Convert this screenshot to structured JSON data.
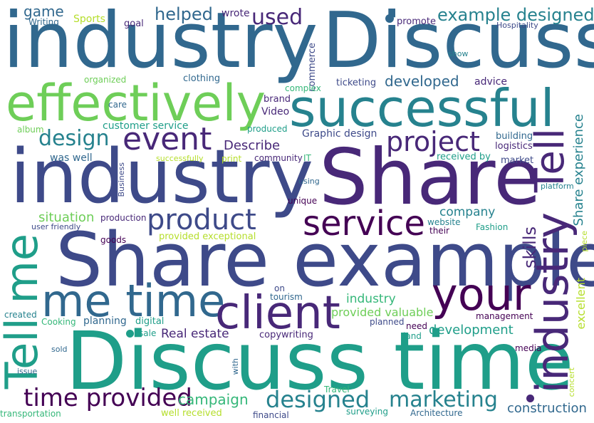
{
  "colors": {
    "purple": "#440154",
    "indigo": "#482878",
    "violet": "#3e4a89",
    "slate": "#31688e",
    "teal": "#26828e",
    "cyan": "#1f9e89",
    "green": "#35b779",
    "lime": "#6ece58",
    "yellow": "#b5de2b"
  },
  "words": [
    {
      "text": "industry",
      "color": "slate",
      "weight": 5
    },
    {
      "text": "Discuss",
      "color": "slate",
      "weight": 5
    },
    {
      "text": "effectively",
      "color": "lime",
      "weight": 4
    },
    {
      "text": "successful",
      "color": "teal",
      "weight": 4
    },
    {
      "text": "industry",
      "color": "violet",
      "weight": 5
    },
    {
      "text": "Share",
      "color": "indigo",
      "weight": 5
    },
    {
      "text": "Share example",
      "color": "violet",
      "weight": 5
    },
    {
      "text": "Discuss time",
      "color": "cyan",
      "weight": 5
    },
    {
      "text": "Tell me",
      "color": "cyan",
      "weight": 4
    },
    {
      "text": "me time",
      "color": "slate",
      "weight": 4
    },
    {
      "text": "client",
      "color": "indigo",
      "weight": 4
    },
    {
      "text": "your",
      "color": "purple",
      "weight": 4
    },
    {
      "text": "industry",
      "color": "indigo",
      "weight": 4
    },
    {
      "text": "Tell",
      "color": "indigo",
      "weight": 4
    },
    {
      "text": "event",
      "color": "indigo",
      "weight": 3
    },
    {
      "text": "design",
      "color": "teal",
      "weight": 3
    },
    {
      "text": "project",
      "color": "indigo",
      "weight": 3
    },
    {
      "text": "product",
      "color": "violet",
      "weight": 3
    },
    {
      "text": "service",
      "color": "purple",
      "weight": 3
    },
    {
      "text": "time provided",
      "color": "purple",
      "weight": 3
    },
    {
      "text": "designed",
      "color": "teal",
      "weight": 3
    },
    {
      "text": "marketing",
      "color": "teal",
      "weight": 3
    },
    {
      "text": "example designed",
      "color": "teal",
      "weight": 2
    },
    {
      "text": "used",
      "color": "indigo",
      "weight": 2
    },
    {
      "text": "helped",
      "color": "slate",
      "weight": 2
    },
    {
      "text": "game",
      "color": "slate",
      "weight": 1
    },
    {
      "text": "Sports",
      "color": "yellow",
      "weight": 1
    },
    {
      "text": "goal",
      "color": "indigo",
      "weight": 1
    },
    {
      "text": "wrote",
      "color": "indigo",
      "weight": 1
    },
    {
      "text": "Writing",
      "color": "slate",
      "weight": 1
    },
    {
      "text": "promote",
      "color": "indigo",
      "weight": 1
    },
    {
      "text": "Hospitality",
      "color": "violet",
      "weight": 1
    },
    {
      "text": "commerce",
      "color": "violet",
      "weight": 1
    },
    {
      "text": "show",
      "color": "teal",
      "weight": 1
    },
    {
      "text": "organized",
      "color": "lime",
      "weight": 1
    },
    {
      "text": "clothing",
      "color": "slate",
      "weight": 1
    },
    {
      "text": "complex",
      "color": "green",
      "weight": 1
    },
    {
      "text": "ticketing",
      "color": "violet",
      "weight": 1
    },
    {
      "text": "developed",
      "color": "slate",
      "weight": 2
    },
    {
      "text": "advice",
      "color": "indigo",
      "weight": 1
    },
    {
      "text": "brand",
      "color": "indigo",
      "weight": 1
    },
    {
      "text": "care",
      "color": "slate",
      "weight": 1
    },
    {
      "text": "Video",
      "color": "indigo",
      "weight": 1
    },
    {
      "text": "customer service",
      "color": "cyan",
      "weight": 1
    },
    {
      "text": "album",
      "color": "lime",
      "weight": 1
    },
    {
      "text": "produced",
      "color": "cyan",
      "weight": 1
    },
    {
      "text": "Graphic design",
      "color": "violet",
      "weight": 1
    },
    {
      "text": "building",
      "color": "slate",
      "weight": 1
    },
    {
      "text": "logistics",
      "color": "indigo",
      "weight": 1
    },
    {
      "text": "Share experience",
      "color": "teal",
      "weight": 2
    },
    {
      "text": "was well",
      "color": "slate",
      "weight": 1
    },
    {
      "text": "Describe",
      "color": "indigo",
      "weight": 2
    },
    {
      "text": "successfully",
      "color": "yellow",
      "weight": 1
    },
    {
      "text": "print",
      "color": "yellow",
      "weight": 1
    },
    {
      "text": "community",
      "color": "indigo",
      "weight": 1
    },
    {
      "text": "IT",
      "color": "green",
      "weight": 1
    },
    {
      "text": "received by",
      "color": "cyan",
      "weight": 1
    },
    {
      "text": "market",
      "color": "violet",
      "weight": 1
    },
    {
      "text": "Business",
      "color": "violet",
      "weight": 1
    },
    {
      "text": "using",
      "color": "slate",
      "weight": 1
    },
    {
      "text": "platform",
      "color": "teal",
      "weight": 1
    },
    {
      "text": "unique",
      "color": "purple",
      "weight": 1
    },
    {
      "text": "situation",
      "color": "lime",
      "weight": 2
    },
    {
      "text": "production",
      "color": "indigo",
      "weight": 1
    },
    {
      "text": "company",
      "color": "teal",
      "weight": 2
    },
    {
      "text": "skills",
      "color": "indigo",
      "weight": 2
    },
    {
      "text": "user friendly",
      "color": "violet",
      "weight": 1
    },
    {
      "text": "website",
      "color": "teal",
      "weight": 1
    },
    {
      "text": "Fashion",
      "color": "cyan",
      "weight": 1
    },
    {
      "text": "their",
      "color": "purple",
      "weight": 1
    },
    {
      "text": "piece",
      "color": "yellow",
      "weight": 1
    },
    {
      "text": "goods",
      "color": "purple",
      "weight": 1
    },
    {
      "text": "provided exceptional",
      "color": "yellow",
      "weight": 1
    },
    {
      "text": "on",
      "color": "violet",
      "weight": 1
    },
    {
      "text": "tourism",
      "color": "slate",
      "weight": 1
    },
    {
      "text": "industry",
      "color": "green",
      "weight": 2
    },
    {
      "text": "provided valuable",
      "color": "lime",
      "weight": 2
    },
    {
      "text": "excellent",
      "color": "yellow",
      "weight": 2
    },
    {
      "text": "created",
      "color": "teal",
      "weight": 1
    },
    {
      "text": "Cooking",
      "color": "green",
      "weight": 1
    },
    {
      "text": "planning",
      "color": "slate",
      "weight": 1
    },
    {
      "text": "digital",
      "color": "cyan",
      "weight": 1
    },
    {
      "text": "planned",
      "color": "violet",
      "weight": 1
    },
    {
      "text": "management",
      "color": "purple",
      "weight": 1
    },
    {
      "text": "need",
      "color": "purple",
      "weight": 1
    },
    {
      "text": "sale",
      "color": "cyan",
      "weight": 1
    },
    {
      "text": "Real estate",
      "color": "indigo",
      "weight": 2
    },
    {
      "text": "copywriting",
      "color": "indigo",
      "weight": 1
    },
    {
      "text": "land",
      "color": "cyan",
      "weight": 1
    },
    {
      "text": "development",
      "color": "cyan",
      "weight": 2
    },
    {
      "text": "sold",
      "color": "slate",
      "weight": 1
    },
    {
      "text": "media",
      "color": "purple",
      "weight": 1
    },
    {
      "text": "issue",
      "color": "slate",
      "weight": 1
    },
    {
      "text": "with",
      "color": "slate",
      "weight": 1
    },
    {
      "text": "concert",
      "color": "yellow",
      "weight": 1
    },
    {
      "text": "campaign",
      "color": "green",
      "weight": 2
    },
    {
      "text": "Travel",
      "color": "green",
      "weight": 1
    },
    {
      "text": "surveying",
      "color": "cyan",
      "weight": 1
    },
    {
      "text": "construction",
      "color": "slate",
      "weight": 2
    },
    {
      "text": "transportation",
      "color": "green",
      "weight": 1
    },
    {
      "text": "well received",
      "color": "yellow",
      "weight": 1
    },
    {
      "text": "financial",
      "color": "violet",
      "weight": 1
    },
    {
      "text": "Architecture",
      "color": "slate",
      "weight": 1
    }
  ]
}
